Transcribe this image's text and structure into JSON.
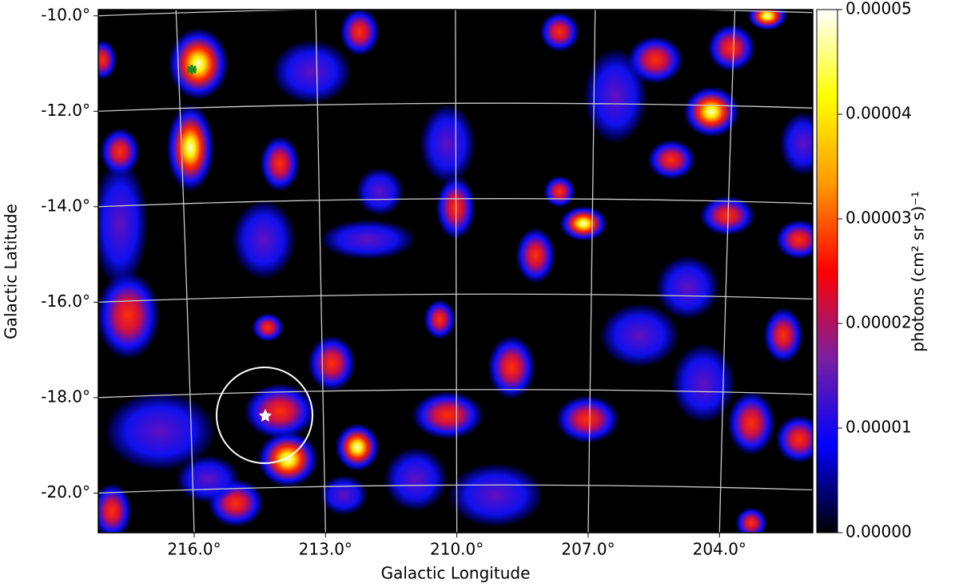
{
  "chart_data": {
    "type": "skymap",
    "x_label": "Galactic Longitude",
    "y_label": "Galactic Latitude",
    "colorbar_label": "photons (cm² sr s)⁻¹",
    "xlim": [
      218.19,
      201.87
    ],
    "ylim": [
      -20.83,
      -9.87
    ],
    "xticks": [
      {
        "value": 216,
        "label": "216.0°"
      },
      {
        "value": 213,
        "label": "213.0°"
      },
      {
        "value": 210,
        "label": "210.0°"
      },
      {
        "value": 207,
        "label": "207.0°"
      },
      {
        "value": 204,
        "label": "204.0°"
      }
    ],
    "yticks": [
      {
        "value": -10,
        "label": "-10.0°"
      },
      {
        "value": -12,
        "label": "-12.0°"
      },
      {
        "value": -14,
        "label": "-14.0°"
      },
      {
        "value": -16,
        "label": "-16.0°"
      },
      {
        "value": -18,
        "label": "-18.0°"
      },
      {
        "value": -20,
        "label": "-20.0°"
      }
    ],
    "clim": [
      0,
      5e-05
    ],
    "cticks": [
      {
        "value": 0,
        "label": "0.00000"
      },
      1e-05,
      2e-05,
      3e-05,
      4e-05,
      5e-05
    ],
    "colormap": [
      "#000000",
      "#0000ff",
      "#7a1fa0",
      "#ff0000",
      "#ff9900",
      "#ffff00",
      "#ffffff"
    ],
    "grid": true
  }
}
